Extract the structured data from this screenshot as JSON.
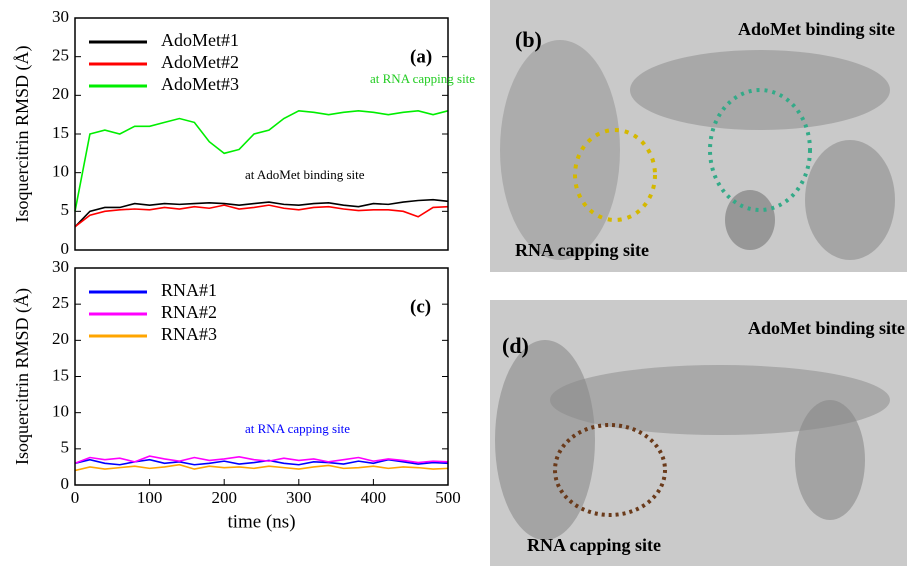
{
  "chart_data": [
    {
      "type": "line",
      "panel_label": "(a)",
      "ylabel": "Isoquercitrin RMSD (Å)",
      "x": [
        0,
        20,
        40,
        60,
        80,
        100,
        120,
        140,
        160,
        180,
        200,
        220,
        240,
        260,
        280,
        300,
        320,
        340,
        360,
        380,
        400,
        420,
        440,
        460,
        480,
        500
      ],
      "xlim": [
        0,
        500
      ],
      "ylim": [
        0,
        30
      ],
      "yticks": [
        0,
        5,
        10,
        15,
        20,
        25,
        30
      ],
      "series": [
        {
          "name": "AdoMet#1",
          "color": "#000000",
          "values": [
            3,
            5,
            5.5,
            5.5,
            6,
            5.8,
            6,
            5.9,
            6,
            6.1,
            6,
            5.8,
            6,
            6.2,
            5.9,
            5.8,
            6,
            6.1,
            5.8,
            5.6,
            6,
            5.9,
            6.2,
            6.4,
            6.5,
            6.3
          ]
        },
        {
          "name": "AdoMet#2",
          "color": "#ff0000",
          "values": [
            3,
            4.5,
            5,
            5.2,
            5.3,
            5.2,
            5.5,
            5.3,
            5.6,
            5.4,
            5.8,
            5.3,
            5.5,
            5.8,
            5.4,
            5.2,
            5.5,
            5.6,
            5.3,
            5.1,
            5.2,
            5.2,
            5,
            4.3,
            5.5,
            5.6
          ]
        },
        {
          "name": "AdoMet#3",
          "color": "#00ee00",
          "values": [
            5,
            15,
            15.5,
            15,
            16,
            16,
            16.5,
            17,
            16.5,
            14,
            12.5,
            13,
            15,
            15.5,
            17,
            18,
            17.8,
            17.5,
            17.8,
            18,
            17.8,
            17.5,
            17.8,
            18,
            17.5,
            18
          ]
        }
      ],
      "annotations": [
        {
          "text": "at RNA capping site",
          "color": "#22cc22"
        },
        {
          "text": "at AdoMet binding site",
          "color": "#000000"
        }
      ]
    },
    {
      "type": "line",
      "panel_label": "(c)",
      "ylabel": "Isoquercitrin RMSD (Å)",
      "xlabel": "time (ns)",
      "x": [
        0,
        20,
        40,
        60,
        80,
        100,
        120,
        140,
        160,
        180,
        200,
        220,
        240,
        260,
        280,
        300,
        320,
        340,
        360,
        380,
        400,
        420,
        440,
        460,
        480,
        500
      ],
      "xlim": [
        0,
        500
      ],
      "xticks": [
        0,
        100,
        200,
        300,
        400,
        500
      ],
      "ylim": [
        0,
        30
      ],
      "yticks": [
        0,
        5,
        10,
        15,
        20,
        25,
        30
      ],
      "series": [
        {
          "name": "RNA#1",
          "color": "#0000ff",
          "values": [
            3,
            3.5,
            3,
            2.8,
            3.2,
            3.5,
            3,
            3.2,
            2.8,
            3,
            3.3,
            2.9,
            3.1,
            3.4,
            3,
            2.8,
            3.2,
            3.1,
            2.9,
            3.3,
            3,
            3.5,
            3.2,
            2.9,
            3.1,
            3
          ]
        },
        {
          "name": "RNA#2",
          "color": "#ff00ff",
          "values": [
            3,
            3.8,
            3.5,
            3.7,
            3.2,
            4,
            3.6,
            3.3,
            3.8,
            3.4,
            3.6,
            3.9,
            3.5,
            3.3,
            3.7,
            3.4,
            3.6,
            3.2,
            3.5,
            3.8,
            3.3,
            3.6,
            3.4,
            3.1,
            3.3,
            3.2
          ]
        },
        {
          "name": "RNA#3",
          "color": "#ffa500",
          "values": [
            2,
            2.5,
            2.2,
            2.4,
            2.6,
            2.3,
            2.5,
            2.8,
            2.2,
            2.6,
            2.4,
            2.5,
            2.3,
            2.6,
            2.4,
            2.2,
            2.5,
            2.7,
            2.3,
            2.4,
            2.6,
            2.3,
            2.5,
            2.4,
            2.2,
            2.3
          ]
        }
      ],
      "annotations": [
        {
          "text": "at RNA capping site",
          "color": "#0000ff"
        }
      ]
    }
  ],
  "panels": [
    {
      "label": "(b)",
      "sites": [
        "AdoMet binding site",
        "RNA capping site"
      ]
    },
    {
      "label": "(d)",
      "sites": [
        "AdoMet binding site",
        "RNA capping site"
      ]
    }
  ]
}
